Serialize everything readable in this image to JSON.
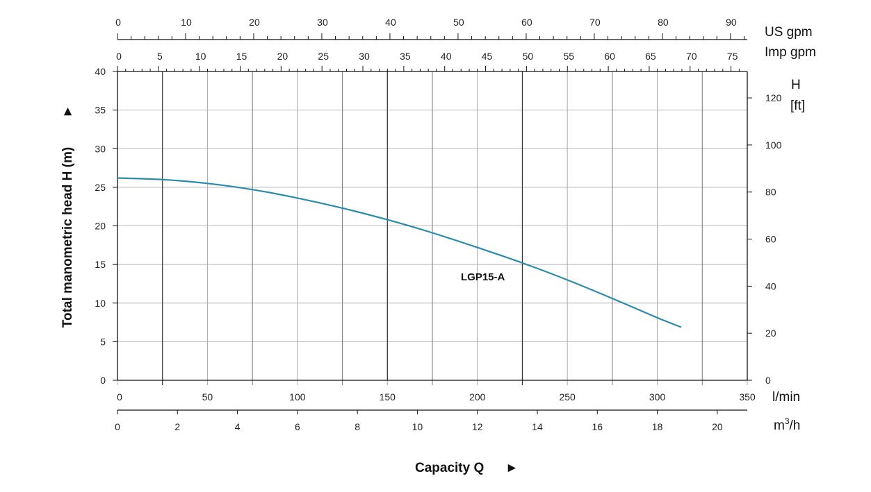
{
  "chart_data": {
    "type": "line",
    "title": "",
    "xlabel": "Capacity Q",
    "ylabel": "Total manometric head H (m)",
    "arrow_glyph": "►",
    "x_unit": "l/min",
    "xlim": [
      0,
      350
    ],
    "x_ticks": [
      0,
      50,
      100,
      150,
      200,
      250,
      300,
      350
    ],
    "ylim": [
      0,
      40
    ],
    "y_ticks": [
      0,
      5,
      10,
      15,
      20,
      25,
      30,
      35,
      40
    ],
    "y2_label": "H",
    "y2_unit": "[ft]",
    "y2_ticks": [
      0,
      20,
      40,
      60,
      80,
      100,
      120
    ],
    "m3h_unit": "m",
    "m3h_sup": "3",
    "m3h_suffix": "/h",
    "m3h_ticks": [
      0,
      2,
      4,
      6,
      8,
      10,
      12,
      14,
      16,
      18,
      20
    ],
    "us_gpm_unit": "US gpm",
    "us_gpm_ticks": [
      0,
      10,
      20,
      30,
      40,
      50,
      60,
      70,
      80,
      90
    ],
    "imp_gpm_unit": "Imp gpm",
    "imp_gpm_ticks": [
      0,
      5,
      10,
      15,
      20,
      25,
      30,
      35,
      40,
      45,
      50,
      55,
      60,
      65,
      70,
      75
    ],
    "grid": true,
    "series": [
      {
        "name": "LGP15-A",
        "color": "#2a8bab",
        "x": [
          0,
          25,
          50,
          75,
          100,
          125,
          150,
          175,
          200,
          225,
          250,
          275,
          300,
          313
        ],
        "y": [
          26.2,
          26.0,
          25.5,
          24.7,
          23.6,
          22.3,
          20.8,
          19.1,
          17.2,
          15.2,
          13.0,
          10.6,
          8.1,
          6.9
        ]
      }
    ]
  }
}
